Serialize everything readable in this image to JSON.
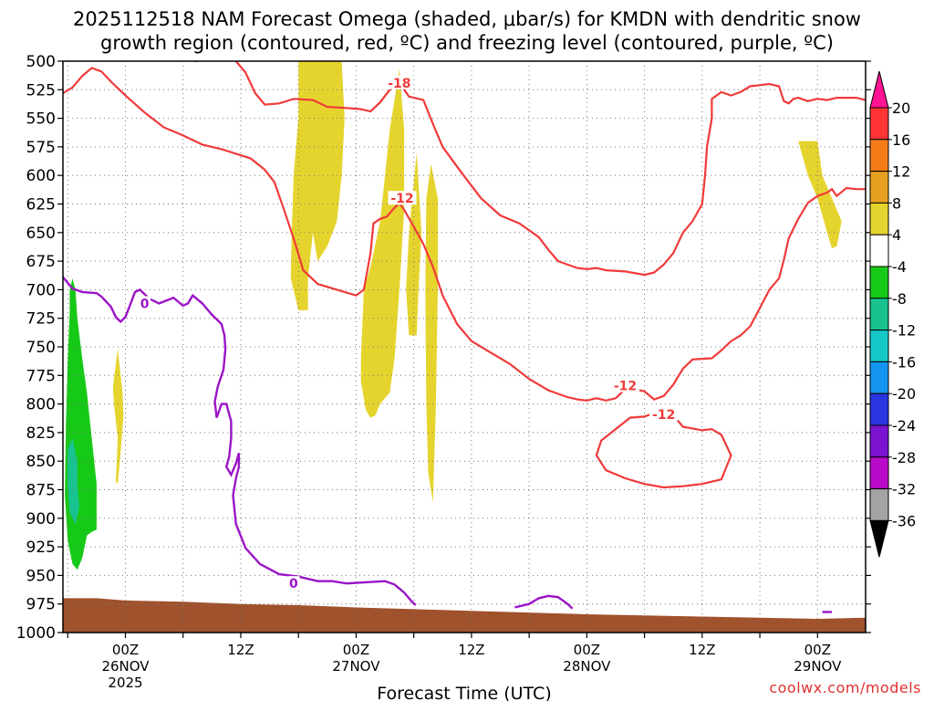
{
  "chart_data": {
    "type": "heatmap",
    "title_line1": "2025112518 NAM Forecast Omega (shaded, μbar/s) for KMDN with dendritic snow",
    "title_line2": "growth region (contoured, red, ºC) and freezing level (contoured, purple, ºC)",
    "xlabel": "Forecast Time (UTC)",
    "credit": "coolwx.com/models",
    "x_range_hours": [
      -6.5,
      77
    ],
    "y_range_hPa": [
      1000,
      500
    ],
    "y_ticks": [
      "500",
      "525",
      "550",
      "575",
      "600",
      "625",
      "650",
      "675",
      "700",
      "725",
      "750",
      "775",
      "800",
      "825",
      "850",
      "875",
      "900",
      "925",
      "950",
      "975",
      "1000"
    ],
    "x_ticks": [
      {
        "hour": 0,
        "label": "00Z",
        "date": "26NOV",
        "year": "2025"
      },
      {
        "hour": 12,
        "label": "12Z",
        "date": "",
        "year": ""
      },
      {
        "hour": 24,
        "label": "00Z",
        "date": "27NOV",
        "year": ""
      },
      {
        "hour": 36,
        "label": "12Z",
        "date": "",
        "year": ""
      },
      {
        "hour": 48,
        "label": "00Z",
        "date": "28NOV",
        "year": ""
      },
      {
        "hour": 60,
        "label": "12Z",
        "date": "",
        "year": ""
      },
      {
        "hour": 72,
        "label": "00Z",
        "date": "29NOV",
        "year": ""
      }
    ],
    "colorbar": {
      "labels": [
        "20",
        "16",
        "12",
        "8",
        "4",
        "-4",
        "-8",
        "-12",
        "-16",
        "-20",
        "-24",
        "-28",
        "-32",
        "-36"
      ],
      "colors": [
        "#ff1493",
        "#ff3535",
        "#f57c19",
        "#e8a020",
        "#e6d42e",
        "#ffffff",
        "#17c917",
        "#18c390",
        "#16c7c7",
        "#1496f0",
        "#2a35e0",
        "#7a12d0",
        "#b80ac8",
        "#a4a4a4",
        "#000000"
      ]
    },
    "contour_labels": [
      {
        "text": "-18",
        "hour": 28.5,
        "hPa": 519
      },
      {
        "text": "-12",
        "hour": 28.8,
        "hPa": 620
      },
      {
        "text": "-12",
        "hour": 52.0,
        "hPa": 784
      },
      {
        "text": "-12",
        "hour": 56.0,
        "hPa": 809
      },
      {
        "text": "0",
        "hour": 2.0,
        "hPa": 712
      },
      {
        "text": "0",
        "hour": 17.5,
        "hPa": 957
      }
    ],
    "red_contours_minus12": [
      [
        [
          -6.5,
          528
        ],
        [
          -5.5,
          523
        ],
        [
          -4.5,
          513
        ],
        [
          -3.5,
          506
        ],
        [
          -2.5,
          509
        ],
        [
          -1.5,
          518
        ],
        [
          0,
          530
        ],
        [
          2,
          545
        ],
        [
          4,
          558
        ],
        [
          6,
          565
        ],
        [
          8,
          573
        ],
        [
          10,
          577
        ],
        [
          11.5,
          581
        ],
        [
          13,
          585
        ],
        [
          14.5,
          595
        ],
        [
          15.5,
          606
        ],
        [
          16.5,
          630
        ],
        [
          17.5,
          655
        ],
        [
          18.5,
          683
        ],
        [
          20,
          695
        ],
        [
          22,
          700
        ],
        [
          24,
          705
        ],
        [
          24.8,
          700
        ],
        [
          25.5,
          668
        ],
        [
          25.8,
          642
        ],
        [
          26.5,
          638
        ],
        [
          27.2,
          636
        ],
        [
          27.8,
          630
        ],
        [
          28.5,
          624
        ],
        [
          29,
          630
        ],
        [
          30,
          645
        ],
        [
          31,
          660
        ],
        [
          32,
          680
        ],
        [
          33,
          705
        ],
        [
          34.5,
          730
        ],
        [
          36,
          745
        ],
        [
          38,
          755
        ],
        [
          40,
          765
        ],
        [
          42,
          778
        ],
        [
          44,
          788
        ],
        [
          46,
          794
        ],
        [
          47,
          796
        ],
        [
          48,
          797
        ],
        [
          49,
          795
        ],
        [
          50,
          797
        ],
        [
          51,
          795
        ],
        [
          52,
          787
        ],
        [
          53,
          787
        ],
        [
          54,
          789
        ],
        [
          55,
          796
        ],
        [
          56,
          793
        ],
        [
          57,
          783
        ],
        [
          58,
          769
        ],
        [
          59,
          761
        ],
        [
          61,
          760
        ],
        [
          62,
          753
        ],
        [
          63,
          745
        ],
        [
          64,
          740
        ],
        [
          65,
          732
        ],
        [
          66,
          716
        ],
        [
          67,
          700
        ],
        [
          68,
          690
        ],
        [
          68.5,
          674
        ],
        [
          69,
          655
        ],
        [
          70,
          638
        ],
        [
          71,
          624
        ],
        [
          72,
          618
        ],
        [
          73,
          615
        ],
        [
          73.5,
          612
        ],
        [
          74,
          618
        ],
        [
          75,
          611
        ],
        [
          76,
          612
        ],
        [
          77,
          612
        ]
      ]
    ],
    "red_contours_loop": [
      [
        [
          54,
          811
        ],
        [
          55,
          808
        ],
        [
          56,
          806
        ],
        [
          57,
          810
        ],
        [
          58,
          820
        ],
        [
          60,
          823
        ],
        [
          61,
          822
        ],
        [
          62,
          827
        ],
        [
          63,
          845
        ],
        [
          62,
          866
        ],
        [
          60,
          870
        ],
        [
          58,
          872
        ],
        [
          56,
          873
        ],
        [
          54,
          870
        ],
        [
          52,
          865
        ],
        [
          50,
          858
        ],
        [
          49,
          845
        ],
        [
          49.5,
          832
        ],
        [
          51,
          822
        ],
        [
          52.5,
          812
        ],
        [
          54,
          811
        ]
      ]
    ],
    "red_contours_minus18": [
      [
        [
          11.5,
          500
        ],
        [
          12.5,
          510
        ],
        [
          13.5,
          528
        ],
        [
          14.5,
          538
        ],
        [
          16,
          537
        ],
        [
          17.5,
          533
        ],
        [
          19.5,
          534
        ],
        [
          21,
          540
        ],
        [
          23,
          541
        ],
        [
          24.5,
          542
        ],
        [
          25.5,
          544
        ],
        [
          26.5,
          536
        ],
        [
          27.5,
          525
        ],
        [
          28.5,
          519
        ],
        [
          29.5,
          531
        ],
        [
          31,
          534
        ],
        [
          32,
          555
        ],
        [
          33,
          575
        ],
        [
          35,
          598
        ],
        [
          37,
          620
        ],
        [
          39,
          635
        ],
        [
          41,
          642
        ],
        [
          43,
          654
        ],
        [
          44,
          665
        ],
        [
          45,
          675
        ],
        [
          47,
          681
        ],
        [
          48,
          682
        ],
        [
          49,
          681
        ],
        [
          50,
          683
        ],
        [
          52,
          684
        ],
        [
          54,
          687
        ],
        [
          55,
          685
        ],
        [
          56,
          678
        ],
        [
          57,
          668
        ],
        [
          58,
          650
        ],
        [
          59,
          640
        ],
        [
          60,
          625
        ],
        [
          60.3,
          600
        ],
        [
          60.5,
          575
        ],
        [
          61,
          550
        ],
        [
          61,
          533
        ],
        [
          62,
          527
        ],
        [
          63,
          530
        ],
        [
          64,
          527
        ],
        [
          65,
          522
        ],
        [
          66,
          521
        ],
        [
          67,
          520
        ],
        [
          68,
          522
        ],
        [
          68.5,
          535
        ],
        [
          69,
          537
        ],
        [
          69.5,
          533
        ],
        [
          70,
          532
        ],
        [
          71,
          535
        ],
        [
          72,
          533
        ],
        [
          73,
          534
        ],
        [
          74,
          532
        ],
        [
          75,
          532
        ],
        [
          76,
          532
        ],
        [
          77,
          534
        ]
      ]
    ],
    "red_segment_top": [
      [
        6.5,
        499
      ],
      [
        7.5,
        500
      ]
    ],
    "purple_contours": [
      [
        [
          -6.5,
          689
        ],
        [
          -5.5,
          699
        ],
        [
          -4.5,
          702
        ],
        [
          -3,
          703
        ],
        [
          -2.5,
          706
        ],
        [
          -1.5,
          715
        ],
        [
          -1,
          724
        ],
        [
          -0.5,
          728
        ],
        [
          0,
          724
        ],
        [
          0.5,
          713
        ],
        [
          1,
          702
        ],
        [
          1.5,
          700
        ],
        [
          2.5,
          708
        ],
        [
          3.5,
          712
        ],
        [
          5,
          707
        ],
        [
          6,
          714
        ],
        [
          6.5,
          712
        ],
        [
          7,
          705
        ],
        [
          8,
          712
        ],
        [
          9,
          722
        ],
        [
          10,
          730
        ],
        [
          10.3,
          740
        ],
        [
          10.4,
          752
        ],
        [
          10.2,
          770
        ],
        [
          9.6,
          785
        ],
        [
          9.3,
          798
        ],
        [
          9.5,
          812
        ],
        [
          10,
          800
        ],
        [
          10.5,
          800
        ],
        [
          11,
          815
        ],
        [
          11,
          830
        ],
        [
          10.8,
          846
        ],
        [
          10.5,
          855
        ],
        [
          11,
          862
        ],
        [
          11.5,
          852
        ],
        [
          11.8,
          843
        ],
        [
          11.8,
          855
        ],
        [
          11.5,
          865
        ],
        [
          11.2,
          880
        ],
        [
          11.5,
          905
        ],
        [
          12.5,
          926
        ],
        [
          14,
          940
        ],
        [
          16,
          949
        ],
        [
          18,
          951
        ],
        [
          20,
          955
        ],
        [
          21.5,
          955
        ],
        [
          23,
          957
        ],
        [
          25,
          956
        ],
        [
          27,
          955
        ],
        [
          28,
          958
        ],
        [
          29,
          965
        ],
        [
          29.8,
          973
        ],
        [
          30.2,
          976
        ]
      ],
      [
        [
          40.5,
          978
        ],
        [
          42,
          975
        ],
        [
          43,
          970
        ],
        [
          44,
          968
        ],
        [
          45,
          969
        ],
        [
          46,
          975
        ],
        [
          46.5,
          979
        ]
      ],
      [
        [
          72.5,
          982
        ],
        [
          73.5,
          982
        ]
      ]
    ],
    "omega_yellow_regions": [
      [
        [
          18,
          500
        ],
        [
          18,
          550
        ],
        [
          17.5,
          600
        ],
        [
          17.3,
          650
        ],
        [
          17.2,
          690
        ],
        [
          18,
          718
        ],
        [
          19,
          718
        ],
        [
          19,
          690
        ],
        [
          19.5,
          650
        ],
        [
          20,
          675
        ],
        [
          21,
          662
        ],
        [
          22,
          640
        ],
        [
          22.5,
          600
        ],
        [
          22.8,
          550
        ],
        [
          22.5,
          500
        ]
      ],
      [
        [
          25,
          805
        ],
        [
          24.5,
          780
        ],
        [
          24.5,
          760
        ],
        [
          24.8,
          700
        ],
        [
          25.5,
          680
        ],
        [
          26.5,
          640
        ],
        [
          27,
          600
        ],
        [
          27.5,
          560
        ],
        [
          28.5,
          507
        ],
        [
          29,
          560
        ],
        [
          29,
          630
        ],
        [
          28.5,
          700
        ],
        [
          28,
          760
        ],
        [
          27.5,
          790
        ],
        [
          26.5,
          800
        ],
        [
          26,
          810
        ],
        [
          25.5,
          812
        ]
      ],
      [
        [
          29.5,
          740
        ],
        [
          29.2,
          700
        ],
        [
          29.5,
          650
        ],
        [
          30.3,
          580
        ],
        [
          30.8,
          650
        ],
        [
          30.5,
          700
        ],
        [
          30.3,
          740
        ]
      ],
      [
        [
          31.5,
          860
        ],
        [
          31.3,
          800
        ],
        [
          31.2,
          700
        ],
        [
          31.3,
          620
        ],
        [
          31.8,
          590
        ],
        [
          32.5,
          620
        ],
        [
          32.5,
          700
        ],
        [
          32.3,
          800
        ],
        [
          32,
          886
        ]
      ],
      [
        [
          -0.8,
          830
        ],
        [
          -1.2,
          800
        ],
        [
          -1.3,
          785
        ],
        [
          -0.8,
          752
        ],
        [
          -0.3,
          790
        ],
        [
          -0.2,
          810
        ],
        [
          -0.5,
          843
        ],
        [
          -0.8,
          870
        ],
        [
          -1,
          868
        ]
      ],
      [
        [
          70,
          570
        ],
        [
          72,
          570
        ],
        [
          72.5,
          600
        ],
        [
          73.5,
          620
        ],
        [
          74.5,
          640
        ],
        [
          74,
          662
        ],
        [
          73.5,
          664
        ],
        [
          73,
          650
        ],
        [
          72,
          620
        ],
        [
          71,
          600
        ],
        [
          70.5,
          585
        ]
      ]
    ],
    "omega_green_regions": [
      [
        [
          -5.8,
          700
        ],
        [
          -5.5,
          690
        ],
        [
          -5.2,
          700
        ],
        [
          -5,
          725
        ],
        [
          -4.5,
          760
        ],
        [
          -4,
          790
        ],
        [
          -3.5,
          830
        ],
        [
          -3,
          870
        ],
        [
          -3,
          910
        ],
        [
          -3.5,
          912
        ],
        [
          -4,
          915
        ],
        [
          -4.5,
          935
        ],
        [
          -5,
          945
        ],
        [
          -5.5,
          940
        ],
        [
          -6,
          920
        ],
        [
          -6.3,
          880
        ],
        [
          -6.2,
          820
        ],
        [
          -6,
          760
        ],
        [
          -5.8,
          720
        ]
      ]
    ],
    "omega_teal_regions": [
      [
        [
          -6,
          840
        ],
        [
          -5.5,
          830
        ],
        [
          -5,
          850
        ],
        [
          -5,
          870
        ],
        [
          -4.8,
          890
        ],
        [
          -5.2,
          905
        ],
        [
          -5.8,
          895
        ],
        [
          -6,
          870
        ]
      ]
    ],
    "terrain": [
      [
        -6.5,
        970
      ],
      [
        -3,
        970
      ],
      [
        0,
        972
      ],
      [
        6,
        973
      ],
      [
        12,
        975
      ],
      [
        18,
        976
      ],
      [
        24,
        978
      ],
      [
        36,
        981
      ],
      [
        48,
        984
      ],
      [
        60,
        986
      ],
      [
        72,
        988
      ],
      [
        77,
        987
      ]
    ]
  }
}
